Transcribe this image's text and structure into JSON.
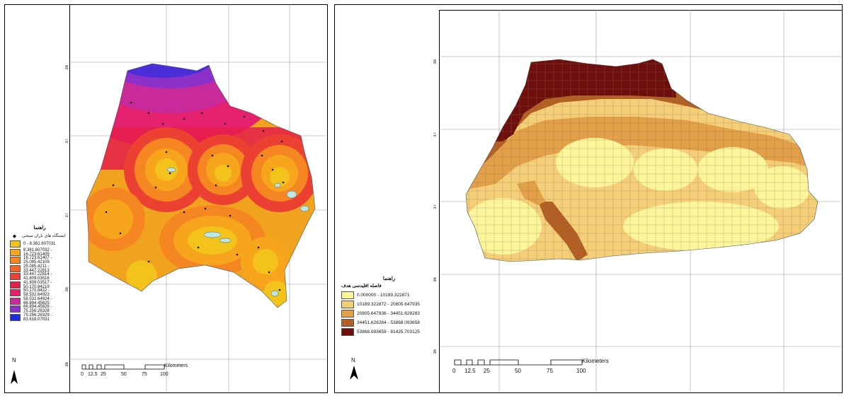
{
  "left_map": {
    "legend_title": "راهنما",
    "point_legend": "ایستگاه های باران سنجی",
    "classes": [
      {
        "label": "0 - 8.361.607031",
        "color": "#f3c21b"
      },
      {
        "label": "8.361.607032 - 16.723.61405",
        "color": "#f6a51c"
      },
      {
        "label": "16.723.61407 - 25.085.42109",
        "color": "#f58622"
      },
      {
        "label": "25.085.4211 - 33.447.22813",
        "color": "#f0642c"
      },
      {
        "label": "33.447.22814 - 41.809.03516",
        "color": "#ec4132"
      },
      {
        "label": "41.809.03517 - 50.170.84219",
        "color": "#e51f4a"
      },
      {
        "label": "50.170.8422 - 58.532.64923",
        "color": "#e4206f"
      },
      {
        "label": "58.532.64924 - 66.894.45625",
        "color": "#c8299b"
      },
      {
        "label": "66.894.45626 - 75.256.26328",
        "color": "#8b31c9"
      },
      {
        "label": "75.256.26329 - 83.618.07031",
        "color": "#1e2be4"
      }
    ],
    "lat_labels": [
      "38",
      "37",
      "37",
      "36",
      "36"
    ],
    "scale_ticks": [
      "0",
      "12.5",
      "25",
      "50",
      "75",
      "100"
    ],
    "scale_unit": "Kilometers",
    "north": "N"
  },
  "right_map": {
    "legend_title": "راهنما",
    "legend_subtitle": "فاصله اقلیدسی هدف",
    "classes": [
      {
        "label": "0.000000 - 10189.322871",
        "color": "#fdf59a"
      },
      {
        "label": "10189.322872 - 20805.647935",
        "color": "#f5cf77"
      },
      {
        "label": "20805.647936 - 34451.628283",
        "color": "#e3a046"
      },
      {
        "label": "34451.628284 - 53868.093658",
        "color": "#b35f24"
      },
      {
        "label": "53868.093659 - 81425.703125",
        "color": "#6e0e0c"
      }
    ],
    "lat_labels": [
      "38",
      "37",
      "37",
      "36",
      "36"
    ],
    "scale_ticks": [
      "0",
      "12.5",
      "25",
      "50",
      "75",
      "100"
    ],
    "scale_unit": "Kilometers",
    "north": "N"
  }
}
